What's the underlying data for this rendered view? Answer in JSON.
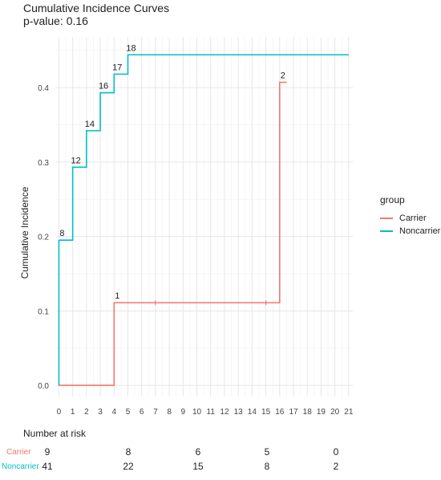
{
  "chart_data": {
    "type": "line",
    "title": "Cumulative Incidence Curves",
    "subtitle": "p-value: 0.16",
    "xlabel": "",
    "ylabel": "Cumulative Incidence",
    "x_ticks": [
      0,
      1,
      2,
      3,
      4,
      5,
      6,
      7,
      8,
      9,
      10,
      11,
      12,
      13,
      14,
      15,
      16,
      17,
      18,
      19,
      20,
      21
    ],
    "y_ticks": [
      0.0,
      0.1,
      0.2,
      0.3,
      0.4
    ],
    "y_tick_labels": [
      "0.0",
      "0.1",
      "0.2",
      "0.3",
      "0.4"
    ],
    "xlim": [
      -0.2,
      21.3
    ],
    "ylim": [
      -0.015,
      0.468
    ],
    "grid": true,
    "legend_title": "group",
    "legend_position": "right",
    "series": [
      {
        "name": "Carrier",
        "color": "#F8766D",
        "steps": [
          [
            0,
            0.0
          ],
          [
            4,
            0.111
          ],
          [
            16,
            0.407
          ],
          [
            16.5,
            0.407
          ]
        ],
        "censor_marks": [
          7,
          15
        ],
        "event_labels": [
          {
            "x": 4,
            "y": 0.111,
            "text": "1"
          },
          {
            "x": 16,
            "y": 0.407,
            "text": "2"
          }
        ]
      },
      {
        "name": "Noncarrier",
        "color": "#00BFC4",
        "steps": [
          [
            0,
            0.195
          ],
          [
            1,
            0.293
          ],
          [
            2,
            0.342
          ],
          [
            3,
            0.393
          ],
          [
            4,
            0.418
          ],
          [
            5,
            0.444
          ],
          [
            21,
            0.444
          ]
        ],
        "censor_marks": [],
        "event_labels": [
          {
            "x": 0,
            "y": 0.195,
            "text": "8"
          },
          {
            "x": 1,
            "y": 0.293,
            "text": "12"
          },
          {
            "x": 2,
            "y": 0.342,
            "text": "14"
          },
          {
            "x": 3,
            "y": 0.393,
            "text": "16"
          },
          {
            "x": 4,
            "y": 0.418,
            "text": "17"
          },
          {
            "x": 5,
            "y": 0.444,
            "text": "18"
          }
        ]
      }
    ],
    "risk_table": {
      "title": "Number at risk",
      "rows": [
        {
          "name": "Carrier",
          "color": "#F8766D",
          "values": [
            "9",
            "8",
            "6",
            "5",
            "0"
          ]
        },
        {
          "name": "Noncarrier",
          "color": "#00BFC4",
          "values": [
            "41",
            "22",
            "15",
            "8",
            "2"
          ]
        }
      ]
    }
  }
}
